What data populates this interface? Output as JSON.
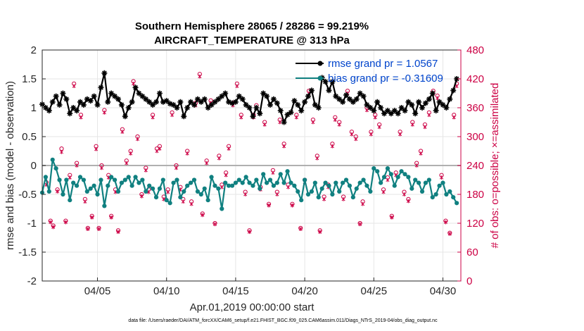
{
  "chart_data": {
    "type": "line",
    "title": "Southern Hemisphere 28065 / 28286 = 99.219%",
    "subtitle": "AIRCRAFT_TEMPERATURE @ 313 hPa",
    "xlabel": "Apr.01,2019 00:00:00 start",
    "ylabel_left": "rmse and bias (model - observation)",
    "ylabel_right": "# of obs: o=possible; ×=assimilated",
    "footnote": "data file: /Users/raeder/DAI/ATM_forcXX/CAM6_setup/f.e21.FHIST_BGC.f09_025.CAM6assim.011/Diags_NTrS_2019-04/obs_diag_output.nc",
    "xlim": [
      1,
      31.3
    ],
    "ylim_left": [
      -2,
      2
    ],
    "ylim_right": [
      0,
      480
    ],
    "xticks": [
      5,
      10,
      15,
      20,
      25,
      30
    ],
    "xtick_labels": [
      "04/05",
      "04/10",
      "04/15",
      "04/20",
      "04/25",
      "04/30"
    ],
    "yticks_left": [
      -2,
      -1.5,
      -1,
      -0.5,
      0,
      0.5,
      1,
      1.5,
      2
    ],
    "yticks_right": [
      0,
      60,
      120,
      180,
      240,
      300,
      360,
      420,
      480
    ],
    "legend": [
      {
        "label": "rmse grand pr = 1.0567",
        "color": "#0044cc"
      },
      {
        "label": "bias grand pr = -0.31609",
        "color": "#0044cc"
      }
    ],
    "colors": {
      "rmse": "#000000",
      "bias": "#108080",
      "obs": "#cc0044",
      "zero": "#b0b0b0",
      "grid": "#e6e6e6"
    },
    "x": [
      1.0,
      1.25,
      1.5,
      1.75,
      2.0,
      2.25,
      2.5,
      2.75,
      3.0,
      3.25,
      3.5,
      3.75,
      4.0,
      4.25,
      4.5,
      4.75,
      5.0,
      5.25,
      5.5,
      5.75,
      6.0,
      6.25,
      6.5,
      6.75,
      7.0,
      7.25,
      7.5,
      7.75,
      8.0,
      8.25,
      8.5,
      8.75,
      9.0,
      9.25,
      9.5,
      9.75,
      10.0,
      10.25,
      10.5,
      10.75,
      11.0,
      11.25,
      11.5,
      11.75,
      12.0,
      12.25,
      12.5,
      12.75,
      13.0,
      13.25,
      13.5,
      13.75,
      14.0,
      14.25,
      14.5,
      14.75,
      15.0,
      15.25,
      15.5,
      15.75,
      16.0,
      16.25,
      16.5,
      16.75,
      17.0,
      17.25,
      17.5,
      17.75,
      18.0,
      18.25,
      18.5,
      18.75,
      19.0,
      19.25,
      19.5,
      19.75,
      20.0,
      20.25,
      20.5,
      20.75,
      21.0,
      21.25,
      21.5,
      21.75,
      22.0,
      22.25,
      22.5,
      22.75,
      23.0,
      23.25,
      23.5,
      23.75,
      24.0,
      24.25,
      24.5,
      24.75,
      25.0,
      25.25,
      25.5,
      25.75,
      26.0,
      26.25,
      26.5,
      26.75,
      27.0,
      27.25,
      27.5,
      27.75,
      28.0,
      28.25,
      28.5,
      28.75,
      29.0,
      29.25,
      29.5,
      29.75,
      30.0,
      30.25,
      30.5,
      30.75,
      31.0
    ],
    "series": [
      {
        "name": "rmse",
        "values": [
          1.06,
          1.0,
          0.95,
          1.1,
          1.2,
          1.05,
          1.25,
          1.15,
          0.9,
          1.0,
          0.95,
          1.1,
          1.05,
          1.15,
          1.12,
          1.2,
          1.05,
          1.35,
          1.6,
          1.1,
          1.25,
          1.2,
          1.15,
          1.05,
          0.85,
          1.0,
          1.1,
          1.35,
          1.25,
          1.2,
          1.15,
          1.1,
          1.05,
          1.1,
          1.25,
          1.1,
          1.12,
          1.07,
          1.05,
          1.0,
          1.1,
          0.85,
          1.0,
          1.1,
          1.05,
          1.15,
          1.1,
          1.15,
          1.0,
          1.05,
          1.1,
          1.15,
          1.2,
          1.25,
          1.1,
          1.08,
          1.1,
          1.2,
          1.15,
          1.05,
          1.0,
          0.85,
          1.0,
          0.9,
          1.25,
          1.2,
          1.05,
          1.15,
          1.08,
          0.95,
          0.75,
          0.88,
          0.92,
          1.12,
          1.05,
          0.95,
          1.1,
          1.2,
          1.3,
          1.05,
          1.0,
          1.52,
          1.45,
          1.3,
          1.45,
          1.2,
          1.15,
          1.1,
          1.22,
          1.15,
          1.1,
          1.15,
          1.25,
          1.2,
          1.05,
          1.0,
          0.95,
          1.1,
          1.0,
          0.9,
          0.95,
          0.9,
          0.95,
          0.9,
          1.0,
          0.95,
          1.1,
          1.05,
          0.9,
          1.1,
          1.0,
          1.08,
          1.15,
          1.25,
          0.95,
          1.1,
          1.05,
          1.0,
          1.15,
          1.3,
          1.5
        ]
      },
      {
        "name": "bias",
        "values": [
          -0.47,
          -0.2,
          -0.45,
          0.1,
          -0.05,
          -0.25,
          -0.5,
          -0.25,
          -0.6,
          -0.3,
          -0.35,
          -0.2,
          -0.25,
          -0.45,
          -0.4,
          -0.35,
          -0.5,
          -0.25,
          -0.7,
          -0.35,
          -0.2,
          -0.25,
          -0.45,
          -0.3,
          -0.25,
          -0.2,
          -0.35,
          -0.2,
          -0.3,
          -0.25,
          -0.45,
          -0.35,
          -0.4,
          -0.55,
          -0.4,
          -0.25,
          -0.6,
          -0.65,
          -0.3,
          -0.25,
          -0.55,
          -0.45,
          -0.35,
          -0.3,
          -0.25,
          -0.45,
          -0.5,
          -0.4,
          -0.6,
          -0.2,
          -0.35,
          -0.4,
          -0.75,
          -0.3,
          -0.35,
          -0.35,
          -0.3,
          -0.25,
          -0.3,
          -0.2,
          -0.3,
          -0.35,
          -0.25,
          -0.4,
          -0.15,
          -0.3,
          -0.25,
          -0.35,
          -0.3,
          -0.15,
          -0.3,
          -0.1,
          -0.3,
          -0.35,
          -0.45,
          -0.6,
          -0.25,
          -0.5,
          -0.45,
          -0.3,
          -0.55,
          -0.4,
          -0.3,
          -0.35,
          -0.5,
          -0.3,
          -0.45,
          -0.3,
          -0.25,
          -0.35,
          -0.55,
          -0.4,
          -0.3,
          -0.25,
          -0.35,
          -0.45,
          -0.05,
          -0.1,
          -0.3,
          -0.2,
          -0.05,
          -0.15,
          -0.35,
          -0.2,
          -0.1,
          -0.15,
          -0.2,
          -0.4,
          -0.25,
          -0.3,
          -0.45,
          -0.3,
          -0.25,
          -0.55,
          -0.5,
          -0.35,
          -0.3,
          -0.5,
          -0.45,
          -0.55,
          -0.65
        ]
      }
    ],
    "obs_counts": {
      "x": [
        1.3,
        1.6,
        1.8,
        2.1,
        2.4,
        2.7,
        3.0,
        3.3,
        3.5,
        3.8,
        4.1,
        4.3,
        4.6,
        4.9,
        5.1,
        5.3,
        5.5,
        5.8,
        6.0,
        6.3,
        6.5,
        6.8,
        7.1,
        7.4,
        7.6,
        7.9,
        8.2,
        8.5,
        8.7,
        9.0,
        9.3,
        9.5,
        9.8,
        10.1,
        10.4,
        10.7,
        11.0,
        11.2,
        11.5,
        11.8,
        12.1,
        12.4,
        12.6,
        12.9,
        13.2,
        13.5,
        13.8,
        14.0,
        14.3,
        14.5,
        14.8,
        15.1,
        15.4,
        15.7,
        16.0,
        16.3,
        16.5,
        16.8,
        17.1,
        17.4,
        17.7,
        18.0,
        18.2,
        18.5,
        18.8,
        19.1,
        19.4,
        19.7,
        20.0,
        20.3,
        20.6,
        20.9,
        21.1,
        21.4,
        21.7,
        22.0,
        22.2,
        22.5,
        22.8,
        23.1,
        23.4,
        23.7,
        24.0,
        24.2,
        24.5,
        24.8,
        25.1,
        25.4,
        25.7,
        26.0,
        26.3,
        26.6,
        26.9,
        27.2,
        27.5,
        27.8,
        28.1,
        28.4,
        28.7,
        29.0,
        29.3,
        29.6,
        29.9,
        30.2,
        30.5,
        30.8,
        31.0
      ],
      "possible": [
        205,
        125,
        115,
        190,
        275,
        125,
        220,
        410,
        245,
        345,
        170,
        110,
        135,
        280,
        110,
        240,
        355,
        220,
        135,
        190,
        105,
        315,
        250,
        270,
        415,
        300,
        180,
        235,
        190,
        345,
        275,
        280,
        175,
        190,
        350,
        240,
        195,
        170,
        270,
        165,
        370,
        430,
        140,
        250,
        375,
        120,
        260,
        200,
        225,
        280,
        370,
        410,
        345,
        185,
        105,
        345,
        365,
        195,
        330,
        160,
        230,
        185,
        335,
        285,
        200,
        160,
        345,
        110,
        210,
        395,
        335,
        260,
        105,
        175,
        200,
        285,
        340,
        330,
        175,
        395,
        310,
        300,
        120,
        165,
        360,
        310,
        345,
        325,
        190,
        215,
        135,
        225,
        310,
        185,
        170,
        330,
        245,
        270,
        325,
        350,
        395,
        385,
        220,
        125,
        100,
        345,
        410,
        180,
        0
      ],
      "assimilated": [
        200,
        122,
        112,
        186,
        268,
        122,
        215,
        405,
        240,
        340,
        165,
        108,
        132,
        274,
        108,
        235,
        350,
        215,
        132,
        185,
        102,
        310,
        245,
        265,
        410,
        295,
        176,
        230,
        185,
        340,
        270,
        275,
        170,
        185,
        345,
        235,
        190,
        165,
        265,
        160,
        365,
        425,
        137,
        245,
        370,
        118,
        255,
        195,
        220,
        275,
        365,
        405,
        340,
        180,
        102,
        340,
        360,
        190,
        325,
        157,
        225,
        180,
        330,
        280,
        195,
        157,
        340,
        108,
        205,
        390,
        330,
        255,
        102,
        170,
        195,
        280,
        335,
        325,
        170,
        390,
        305,
        295,
        118,
        160,
        355,
        305,
        340,
        320,
        185,
        210,
        132,
        220,
        305,
        180,
        166,
        325,
        240,
        265,
        320,
        345,
        390,
        380,
        215,
        122,
        98,
        340,
        405,
        176,
        0
      ]
    }
  }
}
